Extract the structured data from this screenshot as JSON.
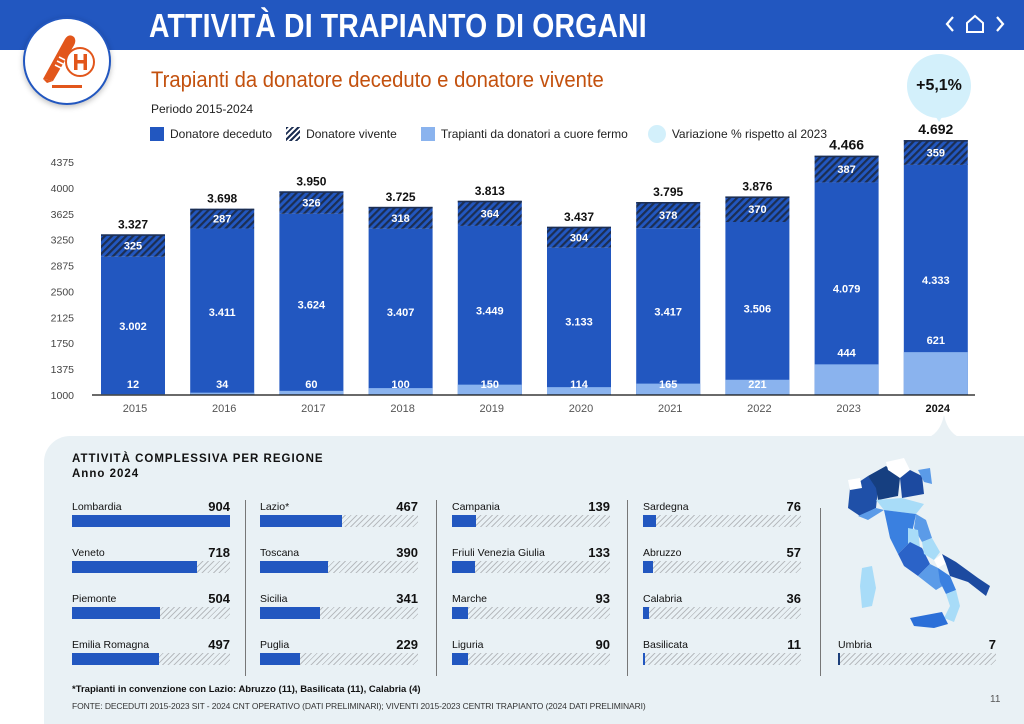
{
  "header": {
    "title": "ATTIVITÀ DI TRAPIANTO DI ORGANI",
    "nav": {
      "prev_icon": "‹",
      "home_icon": "home",
      "next_icon": "›"
    }
  },
  "subtitle": "Trapianti da donatore deceduto e donatore vivente",
  "period": "Periodo 2015-2024",
  "legend": [
    {
      "label": "Donatore deceduto",
      "color": "#2257c0"
    },
    {
      "label": "Donatore vivente",
      "color": "#1c2e52"
    },
    {
      "label": "Trapianti da donatori a cuore fermo",
      "color": "#8ab3ee"
    },
    {
      "label": "Variazione % rispetto al 2023",
      "color": "#d3f0fb"
    }
  ],
  "variation_badge": "+5,1%",
  "chart_data": {
    "type": "bar",
    "stacked": true,
    "title": "Trapianti da donatore deceduto e donatore vivente",
    "subtitle": "Periodo 2015-2024",
    "categories": [
      "2015",
      "2016",
      "2017",
      "2018",
      "2019",
      "2020",
      "2021",
      "2022",
      "2023",
      "2024"
    ],
    "highlight_category": "2024",
    "series": [
      {
        "name": "Donatore deceduto",
        "values": [
          3002,
          3411,
          3624,
          3407,
          3449,
          3133,
          3417,
          3506,
          4079,
          4333
        ],
        "labels": [
          "3.002",
          "3.411",
          "3.624",
          "3.407",
          "3.449",
          "3.133",
          "3.417",
          "3.506",
          "4.079",
          "4.333"
        ]
      },
      {
        "name": "Donatore vivente",
        "values": [
          325,
          287,
          326,
          318,
          364,
          304,
          378,
          370,
          387,
          359
        ],
        "labels": [
          "325",
          "287",
          "326",
          "318",
          "364",
          "304",
          "378",
          "370",
          "387",
          "359"
        ]
      },
      {
        "name": "Trapianti da donatori a cuore fermo",
        "values": [
          12,
          34,
          60,
          100,
          150,
          114,
          165,
          221,
          444,
          621
        ],
        "labels": [
          "12",
          "34",
          "60",
          "100",
          "150",
          "114",
          "165",
          "221",
          "444",
          "621"
        ],
        "note": "subset of Donatore deceduto"
      }
    ],
    "totals": [
      3327,
      3698,
      3950,
      3725,
      3813,
      3437,
      3795,
      3876,
      4466,
      4692
    ],
    "total_labels": [
      "3.327",
      "3.698",
      "3.950",
      "3.725",
      "3.813",
      "3.437",
      "3.795",
      "3.876",
      "4.466",
      "4.692"
    ],
    "yticks": [
      1000,
      1375,
      1750,
      2125,
      2500,
      2875,
      3250,
      3625,
      4000,
      4375
    ],
    "ylim": [
      1000,
      4375
    ],
    "xlabel": "",
    "ylabel": "",
    "grid": false,
    "legend_position": "top"
  },
  "regions": {
    "title": "ATTIVITÀ COMPLESSIVA PER REGIONE",
    "year": "Anno 2024",
    "max": 904,
    "columns": [
      [
        {
          "name": "Lombardia",
          "value": 904
        },
        {
          "name": "Veneto",
          "value": 718
        },
        {
          "name": "Piemonte",
          "value": 504
        },
        {
          "name": "Emilia Romagna",
          "value": 497
        }
      ],
      [
        {
          "name": "Lazio*",
          "value": 467
        },
        {
          "name": "Toscana",
          "value": 390
        },
        {
          "name": "Sicilia",
          "value": 341
        },
        {
          "name": "Puglia",
          "value": 229
        }
      ],
      [
        {
          "name": "Campania",
          "value": 139
        },
        {
          "name": "Friuli Venezia Giulia",
          "value": 133
        },
        {
          "name": "Marche",
          "value": 93
        },
        {
          "name": "Liguria",
          "value": 90
        }
      ],
      [
        {
          "name": "Sardegna",
          "value": 76
        },
        {
          "name": "Abruzzo",
          "value": 57
        },
        {
          "name": "Calabria",
          "value": 36
        },
        {
          "name": "Basilicata",
          "value": 11
        }
      ],
      [
        {
          "name": "Umbria",
          "value": 7
        }
      ]
    ]
  },
  "footnote": "*Trapianti in convenzione con Lazio: Abruzzo (11), Basilicata (11), Calabria (4)",
  "source": "FONTE: DECEDUTI 2015-2023 SIT - 2024 CNT OPERATIVO (DATI PRELIMINARI); VIVENTI 2015-2023 CENTRI TRAPIANTO (2024 DATI PRELIMINARI)",
  "page_number": "11"
}
